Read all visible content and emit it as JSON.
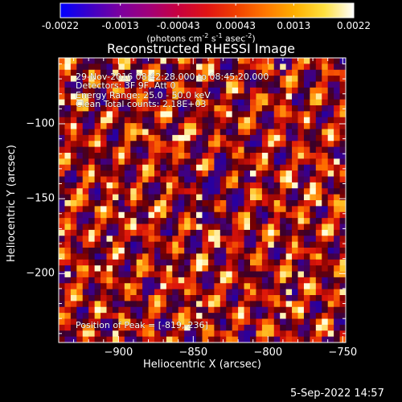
{
  "colorbar": {
    "tick_labels": [
      "-0.0022",
      "-0.0013",
      "-0.00043",
      "0.00043",
      "0.0013",
      "0.0022"
    ],
    "tick_values": [
      -0.0022,
      -0.0013,
      -0.00043,
      0.00043,
      0.0013,
      0.0022
    ],
    "range": [
      -0.0022,
      0.0022
    ],
    "units_main": "(photons cm",
    "units_exp1": "-2",
    "units_s": " s",
    "units_exp2": "-1",
    "units_asec": " asec",
    "units_exp3": "-2",
    "units_close": ")",
    "colors": [
      "#0000ff",
      "#3c00c8",
      "#7a00a0",
      "#a0007a",
      "#c80040",
      "#e01414",
      "#f04000",
      "#ff7800",
      "#ffb000",
      "#ffe040",
      "#ffffff"
    ]
  },
  "chart_data": {
    "type": "heatmap",
    "title": "Reconstructed RHESSI Image",
    "xlabel": "Heliocentric X (arcsec)",
    "ylabel": "Heliocentric Y (arcsec)",
    "xlim": [
      -940,
      -748
    ],
    "ylim": [
      -246,
      -56
    ],
    "x_ticks": [
      -900,
      -850,
      -800,
      -750
    ],
    "x_tick_labels": [
      "−900",
      "−850",
      "−800",
      "−750"
    ],
    "y_ticks": [
      -100,
      -150,
      -200
    ],
    "y_tick_labels": [
      "−100",
      "−150",
      "−200"
    ],
    "grid": false,
    "peak": {
      "x": -819,
      "y": -236
    }
  },
  "annotations": {
    "time_range": "29-Nov-2016 08:42:28.000 to 08:45:20.000",
    "detectors": "Detectors: 3F 9F, Att 0",
    "energy": "Energy Range: 25.0 - 50.0 keV",
    "clean": "Clean     Total counts: 2.18E+03",
    "peak": "Position of Peak = [-819,-236]"
  },
  "timestamp": "5-Sep-2022 14:57"
}
